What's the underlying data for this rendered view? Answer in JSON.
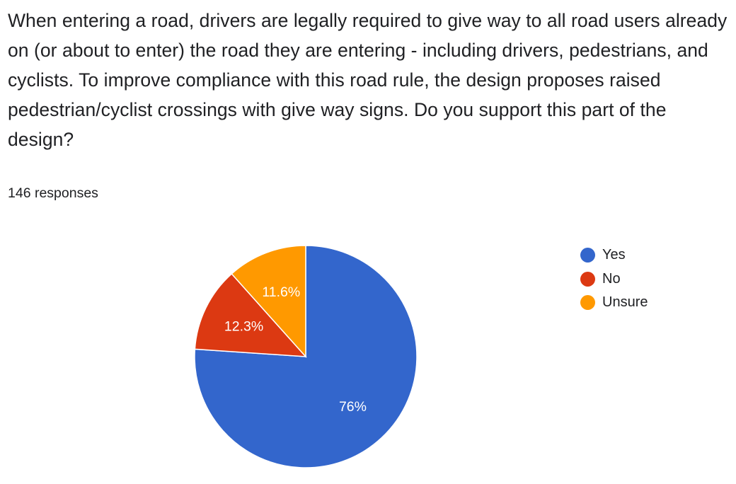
{
  "question": "When entering a road, drivers are legally required to give way to all road users already on (or about to enter) the road they are entering - including drivers, pedestrians, and cyclists. To improve compliance with this road rule, the design proposes raised pedestrian/cyclist crossings with give way signs. Do you support this part of the design?",
  "responses_label": "146 responses",
  "chart_data": {
    "type": "pie",
    "title": "",
    "slices": [
      {
        "label": "Yes",
        "value": 76.0,
        "display": "76%",
        "color": "#3366cc"
      },
      {
        "label": "No",
        "value": 12.3,
        "display": "12.3%",
        "color": "#dc3912"
      },
      {
        "label": "Unsure",
        "value": 11.6,
        "display": "11.6%",
        "color": "#ff9900"
      }
    ],
    "legend_position": "right"
  }
}
